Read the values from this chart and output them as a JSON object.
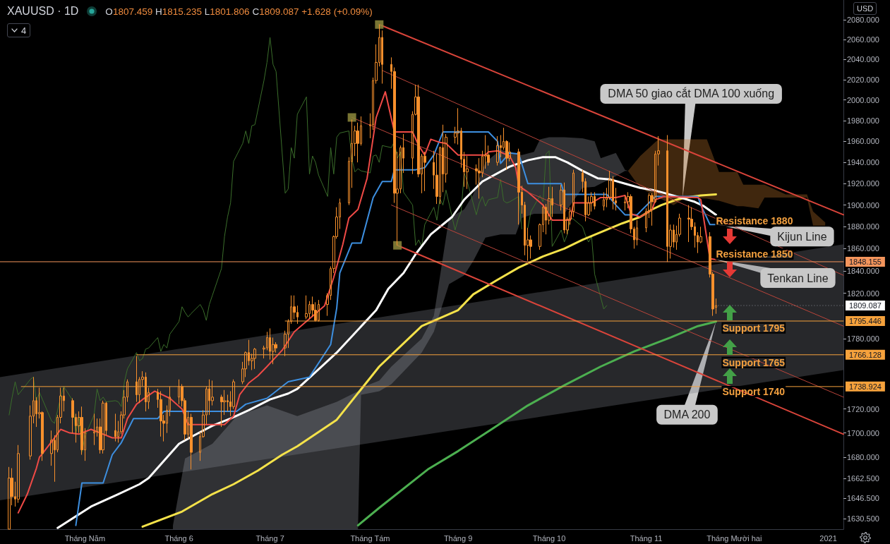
{
  "chart_data": {
    "type": "candlestick",
    "title": "XAUUSD · 1D",
    "subtitle": "O1807.459 H1815.235 L1801.806 C1809.087 +1.628 (+0.09%)",
    "color": "#f7902c",
    "log": true,
    "marker": "none",
    "line_style": "solid",
    "xlim": [
      "2020-04-03",
      "2021-01-06"
    ],
    "ylim": [
      1622,
      2100
    ],
    "xticks": [
      {
        "value": "2020-05-01",
        "label": "Tháng Năm"
      },
      {
        "value": "2020-06-01",
        "label": "Tháng 6"
      },
      {
        "value": "2020-07-01",
        "label": "Tháng 7"
      },
      {
        "value": "2020-08-03",
        "label": "Tháng Tám"
      },
      {
        "value": "2020-09-01",
        "label": "Tháng 9"
      },
      {
        "value": "2020-10-01",
        "label": "Tháng 10"
      },
      {
        "value": "2020-11-02",
        "label": "Tháng 11"
      },
      {
        "value": "2020-12-01",
        "label": "Tháng Mười hai"
      },
      {
        "value": "2021-01-01",
        "label": "2021"
      }
    ],
    "yticks": [
      {
        "value": 2080,
        "label": "2080.000"
      },
      {
        "value": 2060,
        "label": "2060.000"
      },
      {
        "value": 2040,
        "label": "2040.000"
      },
      {
        "value": 2020,
        "label": "2020.000"
      },
      {
        "value": 2000,
        "label": "2000.000"
      },
      {
        "value": 1980,
        "label": "1980.000"
      },
      {
        "value": 1960,
        "label": "1960.000"
      },
      {
        "value": 1940,
        "label": "1940.000"
      },
      {
        "value": 1920,
        "label": "1920.000"
      },
      {
        "value": 1900,
        "label": "1900.000"
      },
      {
        "value": 1880,
        "label": "1880.000"
      },
      {
        "value": 1860,
        "label": "1860.000"
      },
      {
        "value": 1840,
        "label": "1840.000"
      },
      {
        "value": 1820,
        "label": "1820.000"
      },
      {
        "value": 1780,
        "label": "1780.000"
      },
      {
        "value": 1720,
        "label": "1720.000"
      },
      {
        "value": 1700,
        "label": "1700.000"
      },
      {
        "value": 1680,
        "label": "1680.000"
      },
      {
        "value": 1662.5,
        "label": "1662.500"
      },
      {
        "value": 1646.5,
        "label": "1646.500"
      },
      {
        "value": 1630.5,
        "label": "1630.500"
      }
    ],
    "x": [
      "2020-04-06",
      "2020-04-07",
      "2020-04-08",
      "2020-04-09",
      "2020-04-13",
      "2020-04-14",
      "2020-04-15",
      "2020-04-16",
      "2020-04-17",
      "2020-04-20",
      "2020-04-21",
      "2020-04-22",
      "2020-04-23",
      "2020-04-24",
      "2020-04-27",
      "2020-04-28",
      "2020-04-29",
      "2020-04-30",
      "2020-05-01",
      "2020-05-04",
      "2020-05-05",
      "2020-05-06",
      "2020-05-07",
      "2020-05-08",
      "2020-05-11",
      "2020-05-12",
      "2020-05-13",
      "2020-05-14",
      "2020-05-15",
      "2020-05-18",
      "2020-05-19",
      "2020-05-20",
      "2020-05-21",
      "2020-05-22",
      "2020-05-25",
      "2020-05-26",
      "2020-05-27",
      "2020-05-28",
      "2020-05-29",
      "2020-06-01",
      "2020-06-02",
      "2020-06-03",
      "2020-06-04",
      "2020-06-05",
      "2020-06-08",
      "2020-06-09",
      "2020-06-10",
      "2020-06-11",
      "2020-06-12",
      "2020-06-15",
      "2020-06-16",
      "2020-06-17",
      "2020-06-18",
      "2020-06-19",
      "2020-06-22",
      "2020-06-23",
      "2020-06-24",
      "2020-06-25",
      "2020-06-26",
      "2020-06-29",
      "2020-06-30",
      "2020-07-01",
      "2020-07-02",
      "2020-07-03",
      "2020-07-06",
      "2020-07-07",
      "2020-07-08",
      "2020-07-09",
      "2020-07-10",
      "2020-07-13",
      "2020-07-14",
      "2020-07-15",
      "2020-07-16",
      "2020-07-17",
      "2020-07-20",
      "2020-07-21",
      "2020-07-22",
      "2020-07-23",
      "2020-07-24",
      "2020-07-27",
      "2020-07-28",
      "2020-07-29",
      "2020-07-30",
      "2020-07-31",
      "2020-08-03",
      "2020-08-04",
      "2020-08-05",
      "2020-08-06",
      "2020-08-07",
      "2020-08-10",
      "2020-08-11",
      "2020-08-12",
      "2020-08-13",
      "2020-08-14",
      "2020-08-17",
      "2020-08-18",
      "2020-08-19",
      "2020-08-20",
      "2020-08-21",
      "2020-08-24",
      "2020-08-25",
      "2020-08-26",
      "2020-08-27",
      "2020-08-28",
      "2020-08-31",
      "2020-09-01",
      "2020-09-02",
      "2020-09-03",
      "2020-09-04",
      "2020-09-07",
      "2020-09-08",
      "2020-09-09",
      "2020-09-10",
      "2020-09-11",
      "2020-09-14",
      "2020-09-15",
      "2020-09-16",
      "2020-09-17",
      "2020-09-18",
      "2020-09-21",
      "2020-09-22",
      "2020-09-23",
      "2020-09-24",
      "2020-09-25",
      "2020-09-28",
      "2020-09-29",
      "2020-09-30",
      "2020-10-01",
      "2020-10-02",
      "2020-10-05",
      "2020-10-06",
      "2020-10-07",
      "2020-10-08",
      "2020-10-09",
      "2020-10-12",
      "2020-10-13",
      "2020-10-14",
      "2020-10-15",
      "2020-10-16",
      "2020-10-19",
      "2020-10-20",
      "2020-10-21",
      "2020-10-22",
      "2020-10-23",
      "2020-10-26",
      "2020-10-27",
      "2020-10-28",
      "2020-10-29",
      "2020-10-30",
      "2020-11-02",
      "2020-11-03",
      "2020-11-04",
      "2020-11-05",
      "2020-11-06",
      "2020-11-09",
      "2020-11-10",
      "2020-11-11",
      "2020-11-12",
      "2020-11-13",
      "2020-11-16",
      "2020-11-17",
      "2020-11-18",
      "2020-11-19",
      "2020-11-20",
      "2020-11-23",
      "2020-11-24",
      "2020-11-25"
    ],
    "ohlc": [
      [
        1622,
        1672,
        1622,
        1663
      ],
      [
        1663,
        1671,
        1641,
        1648
      ],
      [
        1648,
        1660,
        1640,
        1646
      ],
      [
        1646,
        1690,
        1643,
        1683
      ],
      [
        1681,
        1723,
        1678,
        1714
      ],
      [
        1714,
        1747,
        1708,
        1727
      ],
      [
        1727,
        1730,
        1705,
        1716
      ],
      [
        1716,
        1738,
        1712,
        1717
      ],
      [
        1717,
        1718,
        1677,
        1683
      ],
      [
        1683,
        1702,
        1673,
        1694
      ],
      [
        1694,
        1698,
        1660,
        1686
      ],
      [
        1686,
        1715,
        1684,
        1713
      ],
      [
        1713,
        1738,
        1708,
        1731
      ],
      [
        1731,
        1738,
        1718,
        1727
      ],
      [
        1727,
        1729,
        1700,
        1713
      ],
      [
        1713,
        1716,
        1692,
        1706
      ],
      [
        1706,
        1718,
        1700,
        1713
      ],
      [
        1713,
        1722,
        1682,
        1686
      ],
      [
        1686,
        1704,
        1677,
        1700
      ],
      [
        1700,
        1716,
        1690,
        1701
      ],
      [
        1701,
        1712,
        1697,
        1705
      ],
      [
        1705,
        1712,
        1683,
        1686
      ],
      [
        1686,
        1727,
        1683,
        1725
      ],
      [
        1725,
        1726,
        1698,
        1702
      ],
      [
        1702,
        1716,
        1693,
        1697
      ],
      [
        1697,
        1710,
        1692,
        1701
      ],
      [
        1701,
        1718,
        1699,
        1715
      ],
      [
        1715,
        1736,
        1712,
        1730
      ],
      [
        1730,
        1745,
        1726,
        1743
      ],
      [
        1743,
        1765,
        1726,
        1732
      ],
      [
        1732,
        1747,
        1725,
        1745
      ],
      [
        1745,
        1752,
        1739,
        1747
      ],
      [
        1747,
        1751,
        1718,
        1726
      ],
      [
        1726,
        1738,
        1720,
        1734
      ],
      [
        1734,
        1737,
        1721,
        1728
      ],
      [
        1728,
        1735,
        1697,
        1710
      ],
      [
        1710,
        1715,
        1693,
        1708
      ],
      [
        1708,
        1723,
        1700,
        1719
      ],
      [
        1719,
        1739,
        1714,
        1730
      ],
      [
        1730,
        1745,
        1724,
        1739
      ],
      [
        1739,
        1741,
        1722,
        1727
      ],
      [
        1727,
        1729,
        1694,
        1699
      ],
      [
        1699,
        1718,
        1695,
        1713
      ],
      [
        1713,
        1716,
        1670,
        1684
      ],
      [
        1684,
        1701,
        1677,
        1697
      ],
      [
        1697,
        1719,
        1696,
        1715
      ],
      [
        1715,
        1739,
        1707,
        1737
      ],
      [
        1737,
        1745,
        1715,
        1727
      ],
      [
        1727,
        1744,
        1723,
        1730
      ],
      [
        1730,
        1732,
        1705,
        1726
      ],
      [
        1726,
        1736,
        1715,
        1727
      ],
      [
        1727,
        1732,
        1718,
        1726
      ],
      [
        1726,
        1735,
        1714,
        1722
      ],
      [
        1722,
        1745,
        1720,
        1743
      ],
      [
        1743,
        1760,
        1741,
        1754
      ],
      [
        1754,
        1769,
        1747,
        1768
      ],
      [
        1768,
        1779,
        1757,
        1761
      ],
      [
        1761,
        1767,
        1753,
        1763
      ],
      [
        1763,
        1772,
        1754,
        1771
      ],
      [
        1771,
        1774,
        1763,
        1772
      ],
      [
        1772,
        1786,
        1770,
        1781
      ],
      [
        1781,
        1789,
        1762,
        1769
      ],
      [
        1769,
        1781,
        1758,
        1775
      ],
      [
        1775,
        1777,
        1768,
        1772
      ],
      [
        1772,
        1787,
        1765,
        1784
      ],
      [
        1784,
        1797,
        1772,
        1795
      ],
      [
        1795,
        1818,
        1793,
        1808
      ],
      [
        1808,
        1818,
        1797,
        1803
      ],
      [
        1803,
        1809,
        1793,
        1799
      ],
      [
        1799,
        1818,
        1797,
        1802
      ],
      [
        1802,
        1813,
        1797,
        1810
      ],
      [
        1810,
        1817,
        1799,
        1805
      ],
      [
        1805,
        1812,
        1795,
        1796
      ],
      [
        1796,
        1814,
        1795,
        1810
      ],
      [
        1810,
        1820,
        1800,
        1818
      ],
      [
        1818,
        1844,
        1814,
        1842
      ],
      [
        1842,
        1872,
        1838,
        1871
      ],
      [
        1871,
        1898,
        1869,
        1889
      ],
      [
        1889,
        1906,
        1878,
        1902
      ],
      [
        1902,
        1945,
        1900,
        1941
      ],
      [
        1941,
        1981,
        1916,
        1958
      ],
      [
        1958,
        1975,
        1946,
        1970
      ],
      [
        1970,
        1978,
        1940,
        1958
      ],
      [
        1958,
        1984,
        1956,
        1975
      ],
      [
        1975,
        1987,
        1963,
        1976
      ],
      [
        1976,
        2022,
        1971,
        2019
      ],
      [
        2019,
        2055,
        2016,
        2037
      ],
      [
        2037,
        2075,
        2033,
        2062
      ],
      [
        2062,
        2069,
        2016,
        2035
      ],
      [
        2035,
        2042,
        2011,
        2028
      ],
      [
        2028,
        2032,
        1902,
        1911
      ],
      [
        1911,
        1950,
        1863,
        1915
      ],
      [
        1915,
        1956,
        1911,
        1954
      ],
      [
        1954,
        1967,
        1930,
        1944
      ],
      [
        1944,
        1989,
        1929,
        1986
      ],
      [
        1986,
        2015,
        1985,
        2003
      ],
      [
        2003,
        2015,
        1926,
        1929
      ],
      [
        1929,
        1948,
        1911,
        1946
      ],
      [
        1946,
        1950,
        1913,
        1940
      ],
      [
        1940,
        1951,
        1915,
        1928
      ],
      [
        1928,
        1948,
        1901,
        1908
      ],
      [
        1908,
        1955,
        1901,
        1954
      ],
      [
        1954,
        1976,
        1912,
        1929
      ],
      [
        1929,
        1967,
        1921,
        1964
      ],
      [
        1964,
        1974,
        1958,
        1968
      ],
      [
        1968,
        1992,
        1957,
        1970
      ],
      [
        1970,
        1973,
        1935,
        1943
      ],
      [
        1943,
        1950,
        1917,
        1931
      ],
      [
        1931,
        1946,
        1915,
        1934
      ],
      [
        1934,
        1938,
        1919,
        1932
      ],
      [
        1932,
        1944,
        1906,
        1930
      ],
      [
        1930,
        1951,
        1926,
        1946
      ],
      [
        1946,
        1966,
        1934,
        1947
      ],
      [
        1947,
        1956,
        1937,
        1940
      ],
      [
        1940,
        1965,
        1937,
        1956
      ],
      [
        1956,
        1966,
        1945,
        1954
      ],
      [
        1954,
        1973,
        1952,
        1960
      ],
      [
        1960,
        1961,
        1933,
        1944
      ],
      [
        1944,
        1959,
        1941,
        1950
      ],
      [
        1950,
        1953,
        1882,
        1912
      ],
      [
        1912,
        1918,
        1892,
        1900
      ],
      [
        1900,
        1903,
        1854,
        1863
      ],
      [
        1863,
        1879,
        1849,
        1868
      ],
      [
        1868,
        1872,
        1851,
        1862
      ],
      [
        1862,
        1883,
        1859,
        1882
      ],
      [
        1882,
        1900,
        1875,
        1898
      ],
      [
        1898,
        1901,
        1873,
        1886
      ],
      [
        1886,
        1917,
        1882,
        1906
      ],
      [
        1906,
        1917,
        1889,
        1900
      ],
      [
        1900,
        1919,
        1895,
        1914
      ],
      [
        1914,
        1921,
        1874,
        1877
      ],
      [
        1877,
        1889,
        1873,
        1887
      ],
      [
        1887,
        1898,
        1882,
        1894
      ],
      [
        1894,
        1933,
        1889,
        1930
      ],
      [
        1930,
        1933,
        1912,
        1922
      ],
      [
        1922,
        1925,
        1885,
        1891
      ],
      [
        1891,
        1908,
        1890,
        1902
      ],
      [
        1902,
        1912,
        1894,
        1908
      ],
      [
        1908,
        1912,
        1896,
        1899
      ],
      [
        1899,
        1912,
        1895,
        1905
      ],
      [
        1905,
        1916,
        1898,
        1907
      ],
      [
        1907,
        1932,
        1905,
        1924
      ],
      [
        1924,
        1927,
        1896,
        1904
      ],
      [
        1904,
        1916,
        1895,
        1902
      ],
      [
        1902,
        1909,
        1895,
        1903
      ],
      [
        1903,
        1912,
        1897,
        1908
      ],
      [
        1908,
        1910,
        1874,
        1878
      ],
      [
        1878,
        1880,
        1860,
        1868
      ],
      [
        1868,
        1886,
        1863,
        1879
      ],
      [
        1879,
        1897,
        1875,
        1894
      ],
      [
        1894,
        1911,
        1888,
        1909
      ],
      [
        1909,
        1911,
        1881,
        1903
      ],
      [
        1903,
        1951,
        1902,
        1948
      ],
      [
        1948,
        1965,
        1937,
        1951
      ],
      [
        1951,
        1966,
        1848,
        1862
      ],
      [
        1862,
        1882,
        1851,
        1877
      ],
      [
        1877,
        1882,
        1861,
        1866
      ],
      [
        1866,
        1881,
        1859,
        1873
      ],
      [
        1873,
        1892,
        1871,
        1888
      ],
      [
        1888,
        1900,
        1866,
        1887
      ],
      [
        1887,
        1898,
        1877,
        1880
      ],
      [
        1880,
        1884,
        1861,
        1872
      ],
      [
        1872,
        1875,
        1856,
        1866
      ],
      [
        1866,
        1880,
        1865,
        1871
      ],
      [
        1871,
        1875,
        1834,
        1837
      ],
      [
        1837,
        1839,
        1800,
        1806
      ],
      [
        1807.459,
        1815.235,
        1801.806,
        1809.087
      ]
    ],
    "series": [
      {
        "type": "line",
        "color": "#787b86",
        "x": [
          "2020-04-03",
          "2021-01-06"
        ],
        "values": [
          null,
          null
        ],
        "lower": [
          1645,
          1753
        ],
        "upper": [
          1747,
          1864
        ]
      },
      {
        "type": "line",
        "color": "#9598a1",
        "x": [
          "2020-05-30",
          "2020-06-03",
          "2020-06-12",
          "2020-06-20",
          "2020-06-30",
          "2020-07-10",
          "2020-07-23",
          "2020-07-30",
          "2020-07-31",
          "2020-08-06",
          "2020-08-10",
          "2020-08-20",
          "2020-08-24",
          "2020-08-29",
          "2020-09-03",
          "2020-09-06",
          "2020-09-10",
          "2020-09-15",
          "2020-09-20",
          "2020-09-22",
          "2020-09-26",
          "2020-09-28",
          "2020-10-01",
          "2020-10-06",
          "2020-10-12",
          "2020-10-16",
          "2020-10-18",
          "2020-10-23",
          "2020-10-26",
          "2020-10-27"
        ],
        "values": [
          null,
          null,
          null,
          null,
          null,
          null,
          null,
          null,
          null,
          null,
          null,
          null,
          null,
          null,
          null,
          null,
          null,
          null,
          null,
          null,
          null,
          null,
          null,
          null,
          null,
          null,
          null,
          null,
          null,
          null
        ],
        "lower": [
          1622,
          1622,
          1622,
          1622,
          1622,
          1622,
          1622,
          1622,
          1732,
          1735,
          1741,
          1768,
          1786,
          1828,
          1836,
          1849,
          1870,
          1873,
          1873,
          1888,
          1892,
          1892,
          1892,
          1892,
          1916,
          1917,
          1920,
          1927,
          1932,
          1932
        ],
        "upper": [
          1625,
          1679,
          1691,
          1714,
          1723,
          1714,
          1726,
          1735,
          1738,
          1744,
          1756,
          1780,
          1800,
          1888,
          1896,
          1910,
          1940,
          1952,
          1948,
          1947,
          1950,
          1962,
          1964,
          1964,
          1963,
          1960,
          1944,
          1949,
          1933,
          1932
        ]
      },
      {
        "type": "line",
        "color": "#c67a2c",
        "x": [
          "2020-10-27",
          "2020-10-31",
          "2020-11-06",
          "2020-11-11",
          "2020-11-15",
          "2020-11-22",
          "2020-11-26",
          "2020-12-02",
          "2020-12-04",
          "2020-12-09",
          "2020-12-11",
          "2020-12-18",
          "2020-12-25",
          "2020-12-27",
          "2020-12-31"
        ],
        "values": [
          null,
          null,
          null,
          null,
          null,
          null,
          null,
          null,
          null,
          null,
          null,
          null,
          null,
          null,
          null
        ],
        "lower": [
          1932,
          1916,
          1907,
          1900,
          1907,
          1906,
          1904,
          1899,
          1899,
          1897,
          1907,
          1907,
          1907,
          1881,
          1881
        ],
        "upper": [
          1932,
          1946,
          1962,
          1962,
          1962,
          1962,
          1931,
          1931,
          1919,
          1919,
          1919,
          1910,
          1910,
          1894,
          1884
        ]
      },
      {
        "type": "line",
        "color": "#3b6e2b",
        "values": [
          1715,
          1730,
          1743,
          1732,
          1745,
          1747,
          1726,
          1734,
          1728,
          1710,
          1708,
          1719,
          1730,
          1739,
          1727,
          1699,
          1713,
          1684,
          1697,
          1715,
          1737,
          1727,
          1730,
          1726,
          1727,
          1726,
          1722,
          1743,
          1754,
          1768,
          1761,
          1763,
          1771,
          1772,
          1781,
          1769,
          1775,
          1772,
          1784,
          1795,
          1808,
          1803,
          1799,
          1802,
          1810,
          1805,
          1796,
          1810,
          1818,
          1842,
          1871,
          1889,
          1902,
          1941,
          1958,
          1970,
          1958,
          1975,
          1976,
          2019,
          2037,
          2062,
          2035,
          2028,
          1911,
          1915,
          1954,
          1944,
          1986,
          2003,
          1929,
          1946,
          1940,
          1928,
          1908,
          1954,
          1929,
          1964,
          1968,
          1970,
          1943,
          1931,
          1934,
          1932,
          1930,
          1946,
          1947,
          1940,
          1956,
          1954,
          1960,
          1944,
          1950,
          1912,
          1900,
          1863,
          1868,
          1862,
          1882,
          1898,
          1886,
          1906,
          1900,
          1914,
          1877,
          1887,
          1894,
          1930,
          1922,
          1891,
          1902,
          1908,
          1899,
          1905,
          1907,
          1924,
          1904,
          1902,
          1903,
          1908,
          1878,
          null,
          1879,
          1894,
          1909,
          1903,
          1948,
          1951,
          1862,
          1877,
          1866,
          1873,
          1888,
          1887,
          1880,
          1872,
          1866,
          1871,
          1837,
          1806,
          1809.087,
          null,
          null,
          null,
          null,
          null,
          null,
          null,
          null,
          null,
          null,
          null,
          null,
          null,
          null,
          null,
          null,
          null,
          null,
          null,
          null,
          null,
          null,
          null,
          null,
          null,
          null
        ]
      },
      {
        "type": "line",
        "color": "#4caf50",
        "x": [
          "2020-07-30",
          "2020-08-06",
          "2020-08-22",
          "2020-09-01",
          "2020-09-12",
          "2020-09-24",
          "2020-10-06",
          "2020-10-18",
          "2020-10-29",
          "2020-11-10",
          "2020-11-19",
          "2020-11-25"
        ],
        "values": [
          1625,
          1639,
          1670,
          1685,
          1703,
          1723,
          1740,
          1756,
          1769,
          1781,
          1791,
          1795
        ]
      },
      {
        "type": "line",
        "color": "#f4e24a",
        "x": [
          "2020-05-20",
          "2020-06-02",
          "2020-06-12",
          "2020-06-19",
          "2020-06-27",
          "2020-07-05",
          "2020-07-10",
          "2020-07-23",
          "2020-08-06",
          "2020-08-20",
          "2020-09-01",
          "2020-09-06",
          "2020-09-14",
          "2020-09-21",
          "2020-09-29",
          "2020-10-06",
          "2020-10-12",
          "2020-10-18",
          "2020-10-25",
          "2020-10-31",
          "2020-11-04",
          "2020-11-07",
          "2020-11-12",
          "2020-11-15",
          "2020-11-20",
          "2020-11-25"
        ],
        "values": [
          1624,
          1636,
          1650,
          1658,
          1669,
          1682,
          1689,
          1711,
          1756,
          1791,
          1805,
          1819,
          1832,
          1843,
          1853,
          1860,
          1868,
          1875,
          1883,
          1889,
          1896,
          1900,
          1905,
          1907,
          1909,
          1910
        ]
      },
      {
        "type": "line",
        "color": "#ffffff",
        "x": [
          "2020-04-22",
          "2020-05-03",
          "2020-05-12",
          "2020-05-19",
          "2020-05-22",
          "2020-05-27",
          "2020-06-01",
          "2020-06-06",
          "2020-06-12",
          "2020-06-18",
          "2020-06-24",
          "2020-07-01",
          "2020-07-07",
          "2020-07-10",
          "2020-07-23",
          "2020-08-05",
          "2020-08-09",
          "2020-08-14",
          "2020-08-18",
          "2020-08-23",
          "2020-08-30",
          "2020-09-03",
          "2020-09-09",
          "2020-09-18",
          "2020-09-24",
          "2020-09-29",
          "2020-10-03",
          "2020-10-07",
          "2020-10-12",
          "2020-10-17",
          "2020-10-21",
          "2020-10-26",
          "2020-10-31",
          "2020-11-04",
          "2020-11-07",
          "2020-11-12",
          "2020-11-18",
          "2020-11-21",
          "2020-11-25"
        ],
        "values": [
          1623,
          1640,
          1650,
          1658,
          1663,
          1677,
          1691,
          1698,
          1706,
          1712,
          1719,
          1728,
          1733,
          1737,
          1768,
          1805,
          1824,
          1838,
          1855,
          1873,
          1889,
          1905,
          1922,
          1936,
          1942,
          1945,
          1945,
          1940,
          1932,
          1925,
          1924,
          1920,
          1916,
          1914,
          1912,
          1908,
          1903,
          1899,
          1891
        ]
      },
      {
        "type": "line",
        "color": "#3d8fe0",
        "x": [
          "2020-04-28",
          "2020-04-30",
          "2020-05-07",
          "2020-05-10",
          "2020-05-13",
          "2020-05-17",
          "2020-05-25",
          "2020-05-27",
          "2020-06-20",
          "2020-06-23",
          "2020-06-30",
          "2020-07-07",
          "2020-07-14",
          "2020-07-21",
          "2020-07-23",
          "2020-07-24",
          "2020-07-28",
          "2020-07-31",
          "2020-08-04",
          "2020-08-07",
          "2020-08-10",
          "2020-08-11",
          "2020-08-18",
          "2020-08-21",
          "2020-08-24",
          "2020-08-27",
          "2020-09-11",
          "2020-09-14",
          "2020-09-15",
          "2020-09-18",
          "2020-09-21",
          "2020-09-24",
          "2020-10-05",
          "2020-10-06",
          "2020-10-20",
          "2020-10-23",
          "2020-10-26",
          "2020-10-30",
          "2020-11-04",
          "2020-11-05",
          "2020-11-19",
          "2020-11-20",
          "2020-11-23",
          "2020-11-25"
        ],
        "values": [
          1625,
          1659,
          1659,
          1682,
          1692,
          1712,
          1712,
          1718,
          1718,
          1724,
          1729,
          1743,
          1747,
          1775,
          1807,
          1838,
          1865,
          1865,
          1907,
          1922,
          1922,
          1933,
          1933,
          1935,
          1947,
          1969,
          1969,
          1960,
          1939,
          1949,
          1948,
          1920,
          1920,
          1910,
          1910,
          1900,
          1891,
          1891,
          1905,
          1908,
          1908,
          1900,
          1882,
          1882
        ]
      },
      {
        "type": "line",
        "color": "#ef4a46",
        "x": [
          "2020-04-09",
          "2020-04-12",
          "2020-04-15",
          "2020-04-16",
          "2020-04-17",
          "2020-04-21",
          "2020-04-23",
          "2020-04-26",
          "2020-04-29",
          "2020-05-03",
          "2020-05-06",
          "2020-05-10",
          "2020-05-13",
          "2020-05-15",
          "2020-05-18",
          "2020-05-20",
          "2020-05-24",
          "2020-05-29",
          "2020-06-02",
          "2020-06-04",
          "2020-06-16",
          "2020-06-19",
          "2020-06-21",
          "2020-06-24",
          "2020-06-27",
          "2020-06-30",
          "2020-07-05",
          "2020-07-09",
          "2020-07-19",
          "2020-07-22",
          "2020-07-25",
          "2020-07-27",
          "2020-07-30",
          "2020-08-02",
          "2020-08-05",
          "2020-08-08",
          "2020-08-11",
          "2020-08-17",
          "2020-08-19",
          "2020-08-21",
          "2020-08-23",
          "2020-08-26",
          "2020-08-28",
          "2020-09-01",
          "2020-09-10",
          "2020-09-11",
          "2020-09-14",
          "2020-09-18",
          "2020-09-20",
          "2020-09-21",
          "2020-09-24",
          "2020-09-29",
          "2020-10-02",
          "2020-10-08",
          "2020-10-09",
          "2020-10-15",
          "2020-10-18",
          "2020-10-23",
          "2020-10-26",
          "2020-10-28",
          "2020-10-31",
          "2020-11-04",
          "2020-11-05",
          "2020-11-08",
          "2020-11-19",
          "2020-11-20",
          "2020-11-23",
          "2020-11-25"
        ],
        "values": [
          1635,
          1650,
          1671,
          1680,
          1683,
          1696,
          1703,
          1700,
          1699,
          1703,
          1700,
          1696,
          1696,
          1712,
          1724,
          1728,
          1735,
          1729,
          1720,
          1707,
          1707,
          1714,
          1732,
          1742,
          1748,
          1756,
          1770,
          1786,
          1809,
          1834,
          1864,
          1888,
          1896,
          1925,
          1983,
          2008,
          1969,
          1969,
          1956,
          1947,
          1962,
          1959,
          1958,
          1947,
          1947,
          1950,
          1951,
          1946,
          1935,
          1918,
          1912,
          1900,
          1886,
          1886,
          1902,
          1902,
          1907,
          1907,
          1909,
          1892,
          1889,
          1896,
          1905,
          1908,
          1907,
          1905,
          1851,
          1850
        ]
      },
      {
        "type": "line",
        "color": "#d9443a",
        "x": [
          "2020-08-06",
          "2021-01-06"
        ],
        "values": [
          2075,
          1891
        ]
      },
      {
        "type": "line",
        "color": "#d9443a",
        "x": [
          "2020-08-12",
          "2021-01-06"
        ],
        "values": [
          1863,
          1699
        ]
      },
      {
        "type": "line",
        "color": "#b9443a",
        "x": [
          "2020-07-28",
          "2021-01-06"
        ],
        "values": [
          1983,
          1791
        ]
      },
      {
        "type": "line",
        "color": "#b9443a",
        "x": [
          "2020-08-07",
          "2021-01-06"
        ],
        "values": [
          2029,
          1836
        ]
      },
      {
        "type": "line",
        "color": "#b9443a",
        "x": [
          "2020-08-10",
          "2021-01-06"
        ],
        "values": [
          1900,
          1730
        ]
      },
      {
        "type": "line",
        "color": "#f4955c",
        "x": [
          "2020-04-03",
          "2021-01-06"
        ],
        "values": [
          1848.155,
          1848.155
        ],
        "value_labels": [
          null,
          "1848.155"
        ]
      },
      {
        "type": "line",
        "color": "#f6a23c",
        "x": [
          "2020-07-06",
          "2021-01-06"
        ],
        "values": [
          1795.446,
          1795.446
        ],
        "value_labels": [
          null,
          "1795.446"
        ]
      },
      {
        "type": "line",
        "color": "#f6a23c",
        "x": [
          "2020-05-18",
          "2021-01-06"
        ],
        "values": [
          1766.128,
          1766.128
        ],
        "value_labels": [
          null,
          "1766.128"
        ]
      },
      {
        "type": "line",
        "color": "#f6a23c",
        "x": [
          "2020-04-10",
          "2021-01-06"
        ],
        "values": [
          1738.924,
          1738.924
        ],
        "value_labels": [
          null,
          "1738.924"
        ]
      },
      {
        "type": "scatter",
        "color": "#8e8a3c",
        "marker": "square",
        "x": [
          "2020-07-28",
          "2020-08-06",
          "2020-08-12"
        ],
        "values": [
          1983,
          2075,
          1863
        ]
      }
    ],
    "annotations": [
      {
        "text": "Resistance 1880",
        "x": "2020-11-25",
        "y": 1880
      },
      {
        "text": "Resistance 1850",
        "x": "2020-11-25",
        "y": 1850
      },
      {
        "text": "Support 1795",
        "x": "2020-11-25",
        "y": 1795
      },
      {
        "text": "Support 1765",
        "x": "2020-11-25",
        "y": 1765
      },
      {
        "text": "Support 1740",
        "x": "2020-11-25",
        "y": 1740
      },
      {
        "text": "DMA 50 giao cắt DMA 100 xuống",
        "x": "2020-11-14",
        "y": 1907
      },
      {
        "text": "Kijun Line",
        "x": "2020-11-25",
        "y": 1882
      },
      {
        "text": "Tenkan Line",
        "x": "2020-11-25",
        "y": 1850
      },
      {
        "text": "DMA 200",
        "x": "2020-11-25",
        "y": 1795
      },
      {
        "text": "1809.087",
        "x": "2020-11-25",
        "y": 1809.087
      },
      "4",
      "USD"
    ]
  }
}
